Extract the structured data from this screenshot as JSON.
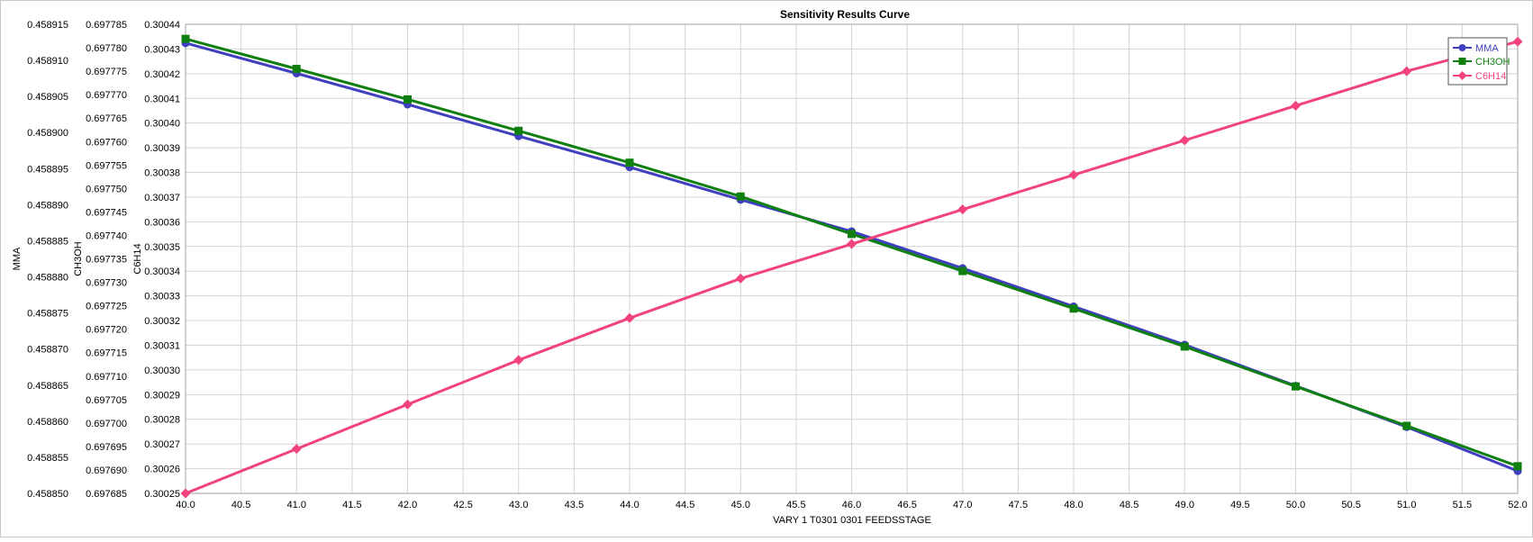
{
  "chart_data": {
    "type": "line",
    "title": "Sensitivity Results Curve",
    "xlabel": "VARY  1 T0301 0301 FEEDSSTAGE",
    "x": [
      40,
      41,
      42,
      43,
      44,
      45,
      46,
      47,
      48,
      49,
      50,
      51,
      52
    ],
    "xlim": [
      40.0,
      52.0
    ],
    "x_ticks": [
      "40.0",
      "40.5",
      "41.0",
      "41.5",
      "42.0",
      "42.5",
      "43.0",
      "43.5",
      "44.0",
      "44.5",
      "45.0",
      "45.5",
      "46.0",
      "46.5",
      "47.0",
      "47.5",
      "48.0",
      "48.5",
      "49.0",
      "49.5",
      "50.0",
      "50.5",
      "51.0",
      "51.5",
      "52.0"
    ],
    "grid": true,
    "legend_position": "top-right",
    "y_axes": [
      {
        "label": "MMA",
        "min": 0.45885,
        "max": 0.458915,
        "ticks": [
          "0.458850",
          "0.458855",
          "0.458860",
          "0.458865",
          "0.458870",
          "0.458875",
          "0.458880",
          "0.458885",
          "0.458890",
          "0.458895",
          "0.458900",
          "0.458905",
          "0.458910",
          "0.458915"
        ]
      },
      {
        "label": "CH3OH",
        "min": 0.697685,
        "max": 0.697785,
        "ticks": [
          "0.697685",
          "0.697690",
          "0.697695",
          "0.697700",
          "0.697705",
          "0.697710",
          "0.697715",
          "0.697720",
          "0.697725",
          "0.697730",
          "0.697735",
          "0.697740",
          "0.697745",
          "0.697750",
          "0.697755",
          "0.697760",
          "0.697765",
          "0.697770",
          "0.697775",
          "0.697780",
          "0.697785"
        ]
      },
      {
        "label": "C6H14",
        "min": 0.30025,
        "max": 0.30044,
        "ticks": [
          "0.30025",
          "0.30026",
          "0.30027",
          "0.30028",
          "0.30029",
          "0.30030",
          "0.30031",
          "0.30032",
          "0.30033",
          "0.30034",
          "0.30035",
          "0.30036",
          "0.30037",
          "0.30038",
          "0.30039",
          "0.30040",
          "0.30041",
          "0.30042",
          "0.30043",
          "0.30044"
        ]
      }
    ],
    "series": [
      {
        "name": "MMA",
        "axis": 0,
        "color": "#3f3fbf",
        "marker": "circle",
        "values": [
          0.4589124,
          0.4589082,
          0.4589039,
          0.4588995,
          0.4588952,
          0.4588907,
          0.4588863,
          0.4588812,
          0.4588759,
          0.4588706,
          0.4588649,
          0.4588592,
          0.4588531
        ]
      },
      {
        "name": "CH3OH",
        "axis": 1,
        "color": "#0f7f0f",
        "marker": "square",
        "values": [
          0.6977819,
          0.6977755,
          0.697769,
          0.6977623,
          0.6977555,
          0.6977483,
          0.6977403,
          0.6977324,
          0.6977244,
          0.6977163,
          0.6977078,
          0.6976994,
          0.6976908
        ]
      },
      {
        "name": "C6H14",
        "axis": 2,
        "color": "#f2437f",
        "marker": "diamond",
        "values": [
          0.30025,
          0.300268,
          0.300286,
          0.300304,
          0.300321,
          0.300337,
          0.300351,
          0.300365,
          0.300379,
          0.300393,
          0.300407,
          0.300421,
          0.300433
        ]
      }
    ]
  }
}
